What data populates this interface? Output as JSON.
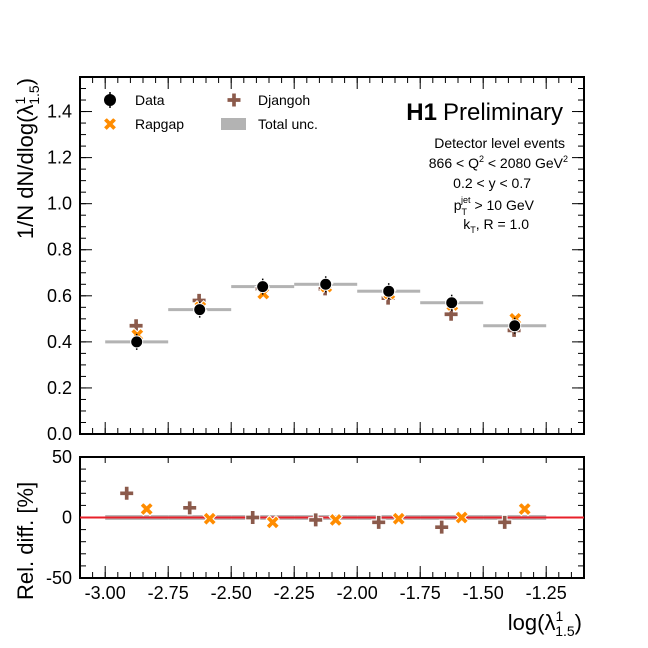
{
  "chart_data": {
    "type": "scatter",
    "x_bin_edges": [
      -3.0,
      -2.75,
      -2.5,
      -2.25,
      -2.0,
      -1.75,
      -1.5,
      -1.25
    ],
    "x_bin_centers": [
      -2.875,
      -2.625,
      -2.375,
      -2.125,
      -1.875,
      -1.625,
      -1.375
    ],
    "xlabel_base": "log(λ",
    "xlabel_sup": "1",
    "xlabel_sub": "1.5",
    "xlabel_close": ")",
    "x_ticks": [
      "-3.00",
      "-2.75",
      "-2.50",
      "-2.25",
      "-2.00",
      "-1.75",
      "-1.50",
      "-1.25"
    ],
    "xlim": [
      -3.1,
      -1.1
    ],
    "top_panel": {
      "ylabel_base": "1/N dN/dlog(λ",
      "ylabel_sup": "1",
      "ylabel_sub": "1.5",
      "ylabel_close": ")",
      "ylim": [
        0.0,
        1.55
      ],
      "y_ticks": [
        "0.0",
        "0.2",
        "0.4",
        "0.6",
        "0.8",
        "1.0",
        "1.2",
        "1.4"
      ],
      "series": [
        {
          "name": "Data",
          "marker": "filled-circle",
          "color": "#000000",
          "values": [
            0.4,
            0.54,
            0.64,
            0.65,
            0.62,
            0.57,
            0.47
          ]
        },
        {
          "name": "Rapgap",
          "marker": "x-cross",
          "color": "#ff8c00",
          "values": [
            0.43,
            0.55,
            0.61,
            0.64,
            0.61,
            0.56,
            0.5
          ]
        },
        {
          "name": "Djangoh",
          "marker": "plus-cross",
          "color": "#8b5a4b",
          "values": [
            0.47,
            0.58,
            0.63,
            0.63,
            0.59,
            0.52,
            0.45
          ]
        },
        {
          "name": "Total unc.",
          "marker": "band",
          "color": "#b3b3b3",
          "values": [
            0.4,
            0.54,
            0.64,
            0.65,
            0.62,
            0.57,
            0.47
          ]
        }
      ]
    },
    "bottom_panel": {
      "ylabel": "Rel. diff. [%]",
      "ylim": [
        -50,
        50
      ],
      "y_ticks": [
        "-50",
        "0",
        "50"
      ],
      "reference_line": 0,
      "reference_color": "#e8202a",
      "series": [
        {
          "name": "Djangoh",
          "values": [
            20,
            8,
            0,
            -2,
            -4,
            -8,
            -4
          ]
        },
        {
          "name": "Rapgap",
          "values": [
            7,
            -1,
            -4,
            -2,
            -1,
            0,
            7
          ]
        },
        {
          "name": "Total unc.",
          "values": [
            2,
            2,
            2,
            2,
            2,
            2,
            2
          ]
        }
      ]
    },
    "annotations": {
      "experiment": "H1",
      "status": "Preliminary",
      "line1": "Detector level events",
      "q2_text": "866 < Q",
      "q2_exp": "2",
      "q2_text2": " < 2080 GeV",
      "q2_exp2": "2",
      "y_range": "0.2 < y < 0.7",
      "pt_base": "p",
      "pt_sub": "T",
      "pt_sup": "jet",
      "pt_rest": " > 10 GeV",
      "kt_base": "k",
      "kt_sub": "T",
      "kt_rest": ", R = 1.0"
    },
    "legend_placement": "top-left",
    "grid": false
  }
}
